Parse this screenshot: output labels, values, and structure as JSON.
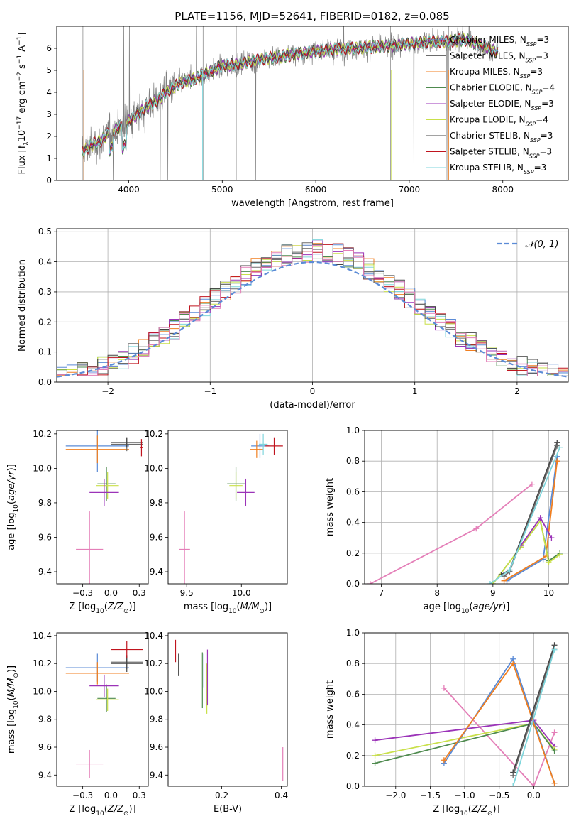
{
  "figure": {
    "title": "PLATE=1156, MJD=52641, FIBERID=0182, z=0.085"
  },
  "colors": {
    "Chabrier MILES": "#5b8bd6",
    "Salpeter MILES": "#6b6b6b",
    "Kroupa MILES": "#f07f20",
    "Chabrier ELODIE": "#4e8a4e",
    "Salpeter ELODIE": "#9b33b8",
    "Kroupa ELODIE": "#c9e04a",
    "Chabrier STELIB": "#444444",
    "Salpeter STELIB": "#c0141e",
    "Kroupa STELIB": "#7fd6dc",
    "pink": "#e47fb8",
    "data": "#808080",
    "normal": "#5b8bd6"
  },
  "chart_data": [
    {
      "id": "spectrum",
      "type": "line",
      "xlabel": "wavelength [Angstrom, rest frame]",
      "ylabel": "Flux [f_λ 10^-17 erg cm^-2 s^-1 A^-1]",
      "xlim": [
        3230,
        8700
      ],
      "ylim": [
        0,
        7
      ],
      "xticks": [
        4000,
        5000,
        6000,
        7000,
        8000
      ],
      "yticks": [
        0,
        1,
        2,
        3,
        4,
        5,
        6
      ],
      "legend_position": "upper-right",
      "legend": [
        {
          "name": "Chabrier MILES",
          "nssp": "3"
        },
        {
          "name": "Salpeter MILES",
          "nssp": "3"
        },
        {
          "name": "Kroupa MILES",
          "nssp": "3"
        },
        {
          "name": "Chabrier ELODIE",
          "nssp": "4"
        },
        {
          "name": "Salpeter ELODIE",
          "nssp": "3"
        },
        {
          "name": "Kroupa ELODIE",
          "nssp": "4"
        },
        {
          "name": "Chabrier STELIB",
          "nssp": "3"
        },
        {
          "name": "Salpeter STELIB",
          "nssp": "3"
        },
        {
          "name": "Kroupa STELIB",
          "nssp": "3"
        }
      ],
      "continuum": [
        [
          3500,
          1.3
        ],
        [
          3600,
          1.6
        ],
        [
          3700,
          1.8
        ],
        [
          3800,
          2.2
        ],
        [
          3900,
          2.4
        ],
        [
          4000,
          2.7
        ],
        [
          4100,
          3.0
        ],
        [
          4200,
          3.4
        ],
        [
          4300,
          3.6
        ],
        [
          4400,
          4.0
        ],
        [
          4500,
          4.3
        ],
        [
          4600,
          4.5
        ],
        [
          4700,
          4.6
        ],
        [
          4800,
          4.8
        ],
        [
          5000,
          5.2
        ],
        [
          5200,
          5.3
        ],
        [
          5400,
          5.5
        ],
        [
          5600,
          5.6
        ],
        [
          5800,
          5.75
        ],
        [
          6000,
          5.85
        ],
        [
          6200,
          5.95
        ],
        [
          6400,
          6.0
        ],
        [
          6600,
          6.05
        ],
        [
          6800,
          6.1
        ],
        [
          7000,
          6.2
        ],
        [
          7200,
          6.3
        ],
        [
          7400,
          6.3
        ],
        [
          7600,
          6.4
        ],
        [
          7800,
          6.1
        ],
        [
          7950,
          5.8
        ]
      ]
    },
    {
      "id": "residuals",
      "type": "line",
      "xlabel": "(data-model)/error",
      "ylabel": "Normed distribution",
      "xlim": [
        -2.5,
        2.5
      ],
      "ylim": [
        0,
        0.51
      ],
      "xticks": [
        -2,
        -1,
        0,
        1,
        2
      ],
      "yticks": [
        0.0,
        0.1,
        0.2,
        0.3,
        0.4,
        0.5
      ],
      "grid": true,
      "legend_position": "upper-right",
      "normal_label": "N(0,1)",
      "bin_width": 0.1
    },
    {
      "id": "age_vs_Z",
      "type": "scatter",
      "xlabel": "Z [log10(Z/Z_sun)]",
      "ylabel": "age [log10(age/yr)]",
      "xlim": [
        -0.48,
        0.33
      ],
      "ylim": [
        9.33,
        10.22
      ],
      "xticks": [
        -0.25,
        0.0,
        0.25
      ],
      "yticks": [
        9.4,
        9.6,
        9.8,
        10.0,
        10.2
      ],
      "points": [
        {
          "model": "Chabrier MILES",
          "x": -0.12,
          "xerr": 0.28,
          "y": 10.13,
          "yerr": 0.15
        },
        {
          "model": "Kroupa MILES",
          "x": -0.12,
          "xerr": 0.28,
          "y": 10.11,
          "yerr": 0.08
        },
        {
          "model": "Salpeter MILES",
          "x": 0.14,
          "xerr": 0.14,
          "y": 10.14,
          "yerr": 0.04
        },
        {
          "model": "Chabrier STELIB",
          "x": 0.14,
          "xerr": 0.14,
          "y": 10.15,
          "yerr": 0.03
        },
        {
          "model": "Salpeter STELIB",
          "x": 0.27,
          "xerr": 0.01,
          "y": 10.12,
          "yerr": 0.05
        },
        {
          "model": "Chabrier ELODIE",
          "x": -0.04,
          "xerr": 0.08,
          "y": 9.91,
          "yerr": 0.1
        },
        {
          "model": "Kroupa ELODIE",
          "x": -0.03,
          "xerr": 0.1,
          "y": 9.9,
          "yerr": 0.08
        },
        {
          "model": "Salpeter ELODIE",
          "x": -0.06,
          "xerr": 0.13,
          "y": 9.86,
          "yerr": 0.08
        },
        {
          "model": "pink",
          "x": -0.19,
          "xerr": 0.12,
          "y": 9.53,
          "yerr": 0.22
        }
      ]
    },
    {
      "id": "age_vs_mass",
      "type": "scatter",
      "xlabel": "mass [log10(M/M_sun)]",
      "ylabel": "",
      "xlim": [
        9.33,
        10.42
      ],
      "ylim": [
        9.33,
        10.22
      ],
      "xticks": [
        9.5,
        10.0
      ],
      "yticks": [
        9.4,
        9.6,
        9.8,
        10.0,
        10.2
      ],
      "points": [
        {
          "model": "Chabrier MILES",
          "x": 10.17,
          "xerr": 0.08,
          "y": 10.13,
          "yerr": 0.07
        },
        {
          "model": "Kroupa MILES",
          "x": 10.14,
          "xerr": 0.06,
          "y": 10.11,
          "yerr": 0.05
        },
        {
          "model": "Salpeter STELIB",
          "x": 10.3,
          "xerr": 0.08,
          "y": 10.13,
          "yerr": 0.05
        },
        {
          "model": "Kroupa STELIB",
          "x": 10.2,
          "xerr": 0.04,
          "y": 10.14,
          "yerr": 0.06
        },
        {
          "model": "Chabrier ELODIE",
          "x": 9.95,
          "xerr": 0.08,
          "y": 9.91,
          "yerr": 0.1
        },
        {
          "model": "Kroupa ELODIE",
          "x": 9.95,
          "xerr": 0.06,
          "y": 9.9,
          "yerr": 0.08
        },
        {
          "model": "Salpeter ELODIE",
          "x": 10.04,
          "xerr": 0.08,
          "y": 9.86,
          "yerr": 0.08
        },
        {
          "model": "pink",
          "x": 9.48,
          "xerr": 0.05,
          "y": 9.53,
          "yerr": 0.22
        }
      ]
    },
    {
      "id": "massweight_vs_age",
      "type": "line",
      "xlabel": "age [log10(age/yr)]",
      "ylabel": "mass weight",
      "xlim": [
        6.7,
        10.35
      ],
      "ylim": [
        0,
        1
      ],
      "xticks": [
        7,
        8,
        9,
        10
      ],
      "yticks": [
        0.0,
        0.2,
        0.4,
        0.6,
        0.8,
        1.0
      ],
      "grid": true,
      "series": [
        {
          "model": "pink",
          "x": [
            6.8,
            8.7,
            9.7
          ],
          "y": [
            0.0,
            0.36,
            0.65
          ]
        },
        {
          "model": "Chabrier MILES",
          "x": [
            9.25,
            9.9,
            10.15
          ],
          "y": [
            0.02,
            0.16,
            0.83
          ]
        },
        {
          "model": "Kroupa MILES",
          "x": [
            9.2,
            9.95,
            10.15
          ],
          "y": [
            0.02,
            0.18,
            0.8
          ]
        },
        {
          "model": "Chabrier ELODIE",
          "x": [
            9.0,
            9.5,
            9.85,
            10.0,
            10.2
          ],
          "y": [
            0.0,
            0.24,
            0.41,
            0.15,
            0.2
          ]
        },
        {
          "model": "Kroupa ELODIE",
          "x": [
            9.0,
            9.5,
            9.85,
            10.0,
            10.2
          ],
          "y": [
            0.0,
            0.24,
            0.41,
            0.14,
            0.19
          ]
        },
        {
          "model": "Salpeter ELODIE",
          "x": [
            9.5,
            9.85,
            10.05
          ],
          "y": [
            0.25,
            0.43,
            0.3
          ]
        },
        {
          "model": "Chabrier STELIB",
          "x": [
            9.15,
            9.3,
            10.15
          ],
          "y": [
            0.06,
            0.09,
            0.92
          ]
        },
        {
          "model": "Salpeter MILES",
          "x": [
            9.2,
            9.3,
            10.15
          ],
          "y": [
            0.05,
            0.08,
            0.9
          ]
        },
        {
          "model": "Kroupa STELIB",
          "x": [
            8.95,
            9.3,
            10.2
          ],
          "y": [
            0.0,
            0.09,
            0.89
          ]
        }
      ]
    },
    {
      "id": "mass_vs_Z",
      "type": "scatter",
      "xlabel": "Z [log10(Z/Z_sun)]",
      "ylabel": "mass [log10(M/M_sun)]",
      "xlim": [
        -0.48,
        0.33
      ],
      "ylim": [
        9.32,
        10.42
      ],
      "xticks": [
        -0.25,
        0.0,
        0.25
      ],
      "yticks": [
        9.4,
        9.6,
        9.8,
        10.0,
        10.2,
        10.4
      ],
      "points": [
        {
          "model": "Chabrier MILES",
          "x": -0.12,
          "xerr": 0.28,
          "y": 10.17,
          "yerr": 0.1
        },
        {
          "model": "Kroupa MILES",
          "x": -0.12,
          "xerr": 0.28,
          "y": 10.13,
          "yerr": 0.08
        },
        {
          "model": "Salpeter MILES",
          "x": 0.14,
          "xerr": 0.14,
          "y": 10.21,
          "yerr": 0.05
        },
        {
          "model": "Chabrier STELIB",
          "x": 0.14,
          "xerr": 0.14,
          "y": 10.2,
          "yerr": 0.06
        },
        {
          "model": "Salpeter STELIB",
          "x": 0.14,
          "xerr": 0.14,
          "y": 10.3,
          "yerr": 0.06
        },
        {
          "model": "Chabrier ELODIE",
          "x": -0.04,
          "xerr": 0.08,
          "y": 9.95,
          "yerr": 0.1
        },
        {
          "model": "Kroupa ELODIE",
          "x": -0.03,
          "xerr": 0.1,
          "y": 9.94,
          "yerr": 0.08
        },
        {
          "model": "Salpeter ELODIE",
          "x": -0.06,
          "xerr": 0.13,
          "y": 10.04,
          "yerr": 0.08
        },
        {
          "model": "pink",
          "x": -0.19,
          "xerr": 0.12,
          "y": 9.48,
          "yerr": 0.1
        }
      ]
    },
    {
      "id": "mass_vs_EBV",
      "type": "scatter",
      "xlabel": "E(B-V)",
      "ylabel": "",
      "xlim": [
        0.02,
        0.42
      ],
      "ylim": [
        9.32,
        10.42
      ],
      "xticks": [
        0.2,
        0.4
      ],
      "yticks": [
        9.4,
        9.6,
        9.8,
        10.0,
        10.2,
        10.4
      ],
      "points": [
        {
          "model": "Salpeter STELIB",
          "x": 0.045,
          "y": 10.29,
          "yerr": 0.08
        },
        {
          "model": "Chabrier STELIB",
          "x": 0.055,
          "y": 10.19,
          "yerr": 0.08
        },
        {
          "model": "Chabrier ELODIE",
          "x": 0.135,
          "y": 10.08,
          "yerr": 0.2
        },
        {
          "model": "Chabrier MILES",
          "x": 0.14,
          "y": 10.15,
          "yerr": 0.12
        },
        {
          "model": "Kroupa ELODIE",
          "x": 0.15,
          "y": 10.02,
          "yerr": 0.18
        },
        {
          "model": "Salpeter ELODIE",
          "x": 0.152,
          "y": 10.1,
          "yerr": 0.2
        },
        {
          "model": "pink",
          "x": 0.405,
          "y": 9.48,
          "yerr": 0.12
        }
      ]
    },
    {
      "id": "massweight_vs_Z",
      "type": "line",
      "xlabel": "Z [log10(Z/Z_sun)]",
      "ylabel": "mass weight",
      "xlim": [
        -2.45,
        0.5
      ],
      "ylim": [
        0,
        1
      ],
      "xticks": [
        -2.0,
        -1.5,
        -1.0,
        -0.5,
        0.0
      ],
      "yticks": [
        0.0,
        0.2,
        0.4,
        0.6,
        0.8,
        1.0
      ],
      "grid": true,
      "series": [
        {
          "model": "pink",
          "x": [
            -1.3,
            0.0,
            0.3
          ],
          "y": [
            0.64,
            0.0,
            0.35
          ]
        },
        {
          "model": "Salpeter ELODIE",
          "x": [
            -2.3,
            0.0,
            0.3
          ],
          "y": [
            0.3,
            0.43,
            0.26
          ]
        },
        {
          "model": "Kroupa ELODIE",
          "x": [
            -2.3,
            0.0,
            0.3
          ],
          "y": [
            0.2,
            0.41,
            0.24
          ]
        },
        {
          "model": "Chabrier ELODIE",
          "x": [
            -2.3,
            0.0,
            0.3
          ],
          "y": [
            0.15,
            0.41,
            0.23
          ]
        },
        {
          "model": "Chabrier MILES",
          "x": [
            -1.3,
            -0.3,
            0.3
          ],
          "y": [
            0.15,
            0.83,
            0.02
          ]
        },
        {
          "model": "Kroupa MILES",
          "x": [
            -1.3,
            -0.3,
            0.3
          ],
          "y": [
            0.17,
            0.8,
            0.02
          ]
        },
        {
          "model": "Chabrier STELIB",
          "x": [
            -0.3,
            0.3
          ],
          "y": [
            0.09,
            0.92
          ]
        },
        {
          "model": "Salpeter MILES",
          "x": [
            -0.3,
            0.3
          ],
          "y": [
            0.07,
            0.9
          ]
        },
        {
          "model": "Kroupa STELIB",
          "x": [
            -0.3,
            0.3
          ],
          "y": [
            0.0,
            0.89
          ]
        }
      ]
    }
  ]
}
